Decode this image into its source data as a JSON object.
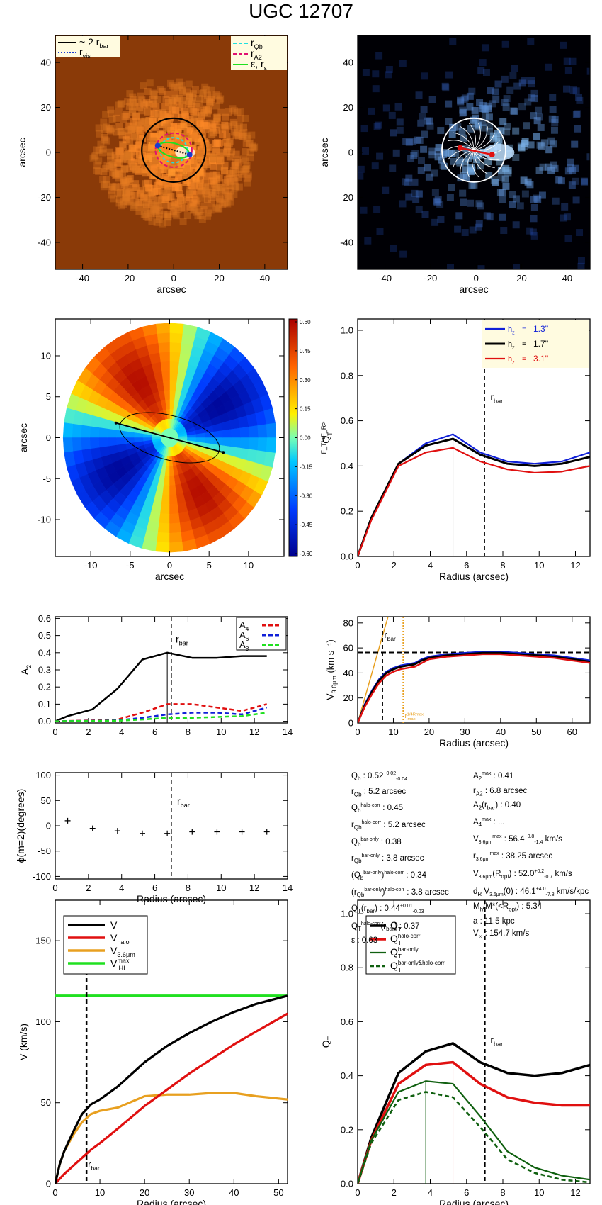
{
  "title": "UGC 12707",
  "colors": {
    "black": "#000000",
    "blue": "#1020d8",
    "red": "#e01010",
    "orange": "#e8a020",
    "green": "#20e020",
    "dkgreen": "#106010",
    "cyan": "#20e0e0",
    "magenta": "#e01070"
  },
  "chart_data": [
    {
      "id": "p1",
      "type": "image",
      "xlabel": "arcsec",
      "ylabel": "arcsec",
      "xlim": [
        -52,
        50
      ],
      "ylim": [
        -52,
        52
      ],
      "xticks": [
        -40,
        -20,
        0,
        20,
        40
      ],
      "yticks": [
        -40,
        -20,
        0,
        20,
        40
      ],
      "legend_left": [
        "~ 2 r",
        "r"
      ],
      "legend_left_sub": [
        "bar",
        "vis"
      ],
      "legend_right": [
        "r",
        "r",
        "ε, r"
      ],
      "legend_right_sub": [
        "Qb",
        "A2",
        "ε"
      ],
      "colormap": "orange"
    },
    {
      "id": "p2",
      "type": "image",
      "xlabel": "arcsec",
      "ylabel": "arcsec",
      "xlim": [
        -52,
        50
      ],
      "ylim": [
        -52,
        52
      ],
      "xticks": [
        -40,
        -20,
        0,
        20,
        40
      ],
      "yticks": [
        -40,
        -20,
        0,
        20,
        40
      ],
      "colormap": "blue"
    },
    {
      "id": "p3",
      "type": "heatmap",
      "xlabel": "arcsec",
      "ylabel": "arcsec",
      "xlim": [
        -14.5,
        14.5
      ],
      "ylim": [
        -14.5,
        14.5
      ],
      "xticks": [
        -10,
        -5,
        0,
        5,
        10
      ],
      "yticks": [
        -10,
        -5,
        0,
        5,
        10
      ],
      "colorbar_ticks": [
        "0.60",
        "0.45",
        "0.30",
        "0.15",
        "0.00",
        "-0.15",
        "-0.30",
        "-0.45",
        "-0.60"
      ],
      "colorbar_label": "F_T/<F_R>"
    },
    {
      "id": "p4",
      "type": "line",
      "xlabel": "Radius (arcsec)",
      "ylabel": "Q",
      "ylabel_sub": "T",
      "xlim": [
        0,
        12.8
      ],
      "ylim": [
        0,
        1.05
      ],
      "xticks": [
        0,
        2,
        4,
        6,
        8,
        10,
        12
      ],
      "yticks": [
        0.0,
        0.2,
        0.4,
        0.6,
        0.8,
        1.0
      ],
      "x": [
        0,
        0.75,
        2.25,
        3.75,
        5.25,
        6.75,
        8.25,
        9.75,
        11.25,
        12.8
      ],
      "series": [
        {
          "name": "1.3''",
          "color": "blue",
          "values": [
            0,
            0.17,
            0.41,
            0.5,
            0.54,
            0.46,
            0.42,
            0.41,
            0.42,
            0.46
          ]
        },
        {
          "name": "1.7''",
          "color": "black",
          "values": [
            0,
            0.17,
            0.41,
            0.49,
            0.52,
            0.45,
            0.41,
            0.4,
            0.41,
            0.44
          ]
        },
        {
          "name": "3.1''",
          "color": "red",
          "values": [
            0,
            0.16,
            0.4,
            0.46,
            0.48,
            0.42,
            0.385,
            0.37,
            0.375,
            0.4
          ]
        }
      ],
      "legend_prefix": "h",
      "legend_prefix_sub": "z",
      "vline_solid": 5.25,
      "vline_dashed": 7.0,
      "rbar_label": "r",
      "rbar_sub": "bar"
    },
    {
      "id": "p5",
      "type": "line",
      "xlabel": "",
      "ylabel": "A",
      "ylabel_sub": "2",
      "xlim": [
        0,
        14
      ],
      "ylim": [
        -0.01,
        0.61
      ],
      "xticks": [
        0,
        2,
        4,
        6,
        8,
        10,
        12,
        14
      ],
      "yticks": [
        0.0,
        0.1,
        0.2,
        0.3,
        0.4,
        0.5,
        0.6
      ],
      "series": [
        {
          "name": "A2",
          "color": "black",
          "x": [
            0,
            0.75,
            2.25,
            3.75,
            5.25,
            6.75,
            8.25,
            9.75,
            11.25,
            12.75
          ],
          "values": [
            0.0,
            0.03,
            0.07,
            0.19,
            0.36,
            0.4,
            0.37,
            0.37,
            0.38,
            0.38
          ]
        },
        {
          "name": "A",
          "sub": "4",
          "color": "red",
          "dashed": true,
          "x": [
            0,
            2.25,
            3.75,
            5.25,
            6.75,
            8.25,
            9.75,
            11.25,
            12.75
          ],
          "values": [
            0,
            0.005,
            0.01,
            0.05,
            0.1,
            0.1,
            0.08,
            0.06,
            0.1
          ]
        },
        {
          "name": "A",
          "sub": "6",
          "color": "blue",
          "dashed": true,
          "x": [
            0,
            2.25,
            3.75,
            5.25,
            6.75,
            8.25,
            9.75,
            11.25,
            12.75
          ],
          "values": [
            0,
            0.003,
            0.005,
            0.02,
            0.04,
            0.05,
            0.05,
            0.04,
            0.08
          ]
        },
        {
          "name": "A",
          "sub": "8",
          "color": "green",
          "dashed": true,
          "x": [
            0,
            2.25,
            3.75,
            5.25,
            6.75,
            8.25,
            9.75,
            11.25,
            12.75
          ],
          "values": [
            0,
            0.002,
            0.003,
            0.01,
            0.02,
            0.02,
            0.025,
            0.03,
            0.05
          ]
        }
      ],
      "vline_solid": 6.75,
      "vline_dashed": 7.0,
      "rbar_label": "r",
      "rbar_sub": "bar"
    },
    {
      "id": "p6",
      "type": "line",
      "xlabel": "Radius (arcsec)",
      "ylabel": "V",
      "ylabel_sub": "3.6μm",
      "ylabel_suffix": " (km s⁻¹)",
      "xlim": [
        0,
        65
      ],
      "ylim": [
        0,
        85
      ],
      "xticks": [
        0,
        10,
        20,
        30,
        40,
        50,
        60
      ],
      "yticks": [
        0,
        20,
        40,
        60,
        80
      ],
      "x": [
        0,
        2,
        4,
        6,
        8,
        10,
        12,
        14,
        16,
        18,
        20,
        25,
        30,
        35,
        40,
        45,
        50,
        55,
        60,
        65
      ],
      "series": [
        {
          "name": "V upper",
          "color": "blue",
          "values": [
            0,
            15,
            26,
            35,
            41,
            44,
            46,
            47,
            48,
            51,
            53,
            55,
            56,
            57,
            57,
            56,
            55,
            54,
            52,
            50
          ]
        },
        {
          "name": "V",
          "color": "black",
          "values": [
            0,
            14,
            25,
            34,
            40,
            43,
            45,
            46,
            47,
            50,
            52,
            54,
            55,
            56,
            56,
            55,
            54,
            53,
            51,
            49
          ]
        },
        {
          "name": "V lower",
          "color": "red",
          "values": [
            0,
            13,
            23,
            32,
            38,
            41,
            43,
            44,
            45,
            48,
            51,
            53,
            54,
            55,
            55,
            54,
            53,
            52,
            50,
            48
          ]
        }
      ],
      "orange_line": {
        "x": [
          0,
          8.5
        ],
        "y": [
          0,
          85
        ]
      },
      "hline": 56.4,
      "vline_dashed": 7.0,
      "vline_dotted": 12.8,
      "rbar_label": "r",
      "rbar_sub": "bar",
      "r14_label": "r",
      "r14_sub": "max",
      "r14_sup": "1/4Rmax"
    },
    {
      "id": "p7",
      "type": "scatter",
      "xlabel": "Radius (arcsec)",
      "ylabel": "ϕ(m=2)(degrees)",
      "xlim": [
        0,
        14
      ],
      "ylim": [
        -105,
        105
      ],
      "xticks": [
        0,
        2,
        4,
        6,
        8,
        10,
        12,
        14
      ],
      "yticks": [
        -100,
        -50,
        0,
        50,
        100
      ],
      "x": [
        0.75,
        2.25,
        3.75,
        5.25,
        6.75,
        8.25,
        9.75,
        11.25,
        12.75
      ],
      "y": [
        10,
        -5,
        -10,
        -15,
        -15,
        -12,
        -12,
        -12,
        -12
      ],
      "vline_dashed": 7.0,
      "rbar_label": "r",
      "rbar_sub": "bar"
    },
    {
      "id": "p8",
      "type": "line",
      "xlabel": "Radius (arcsec)",
      "ylabel": "V (km/s)",
      "xlim": [
        0,
        52
      ],
      "ylim": [
        0,
        175
      ],
      "xticks": [
        0,
        10,
        20,
        30,
        40,
        50
      ],
      "yticks": [
        0,
        50,
        100,
        150
      ],
      "x": [
        0,
        1,
        2,
        4,
        6,
        8,
        10,
        14,
        20,
        25,
        30,
        35,
        40,
        45,
        52
      ],
      "series": [
        {
          "name": "V",
          "color": "black",
          "values": [
            0,
            12,
            20,
            32,
            43,
            49,
            52,
            60,
            75,
            85,
            93,
            100,
            106,
            111,
            116
          ]
        },
        {
          "name": "V",
          "sub": "halo",
          "color": "red",
          "values": [
            0,
            3,
            6,
            11,
            16,
            21,
            25,
            34,
            48,
            58,
            68,
            77,
            86,
            94,
            105
          ]
        },
        {
          "name": "V",
          "sub": "3.6μm",
          "color": "orange",
          "values": [
            0,
            12,
            20,
            30,
            38,
            43,
            45,
            47,
            54,
            55,
            55,
            56,
            56,
            54,
            52
          ]
        }
      ],
      "hline": {
        "name": "V",
        "sub": "HI",
        "sup": "max",
        "color": "green",
        "value": 116
      },
      "vline_dashed": 7.0,
      "rbar_label": "r",
      "rbar_sub": "bar"
    },
    {
      "id": "p9",
      "type": "line",
      "xlabel": "Radius (arcsec)",
      "ylabel": "Q",
      "ylabel_sub": "T",
      "xlim": [
        0,
        12.8
      ],
      "ylim": [
        0,
        1.05
      ],
      "xticks": [
        0,
        2,
        4,
        6,
        8,
        10,
        12
      ],
      "yticks": [
        0.0,
        0.2,
        0.4,
        0.6,
        0.8,
        1.0
      ],
      "x": [
        0,
        0.75,
        2.25,
        3.75,
        5.25,
        6.75,
        8.25,
        9.75,
        11.25,
        12.8
      ],
      "series": [
        {
          "name": "Q",
          "sub": "T",
          "color": "black",
          "values": [
            0,
            0.17,
            0.41,
            0.49,
            0.52,
            0.45,
            0.41,
            0.4,
            0.41,
            0.44
          ]
        },
        {
          "name": "Q",
          "sub": "T",
          "sup": "halo-corr",
          "color": "red",
          "values": [
            0,
            0.16,
            0.37,
            0.44,
            0.45,
            0.37,
            0.32,
            0.3,
            0.29,
            0.29
          ]
        },
        {
          "name": "Q",
          "sub": "T",
          "sup": "bar-only",
          "color": "dkgreen",
          "values": [
            0,
            0.16,
            0.34,
            0.38,
            0.37,
            0.25,
            0.12,
            0.06,
            0.03,
            0.015
          ]
        },
        {
          "name": "Q",
          "sub": "T",
          "sup": "bar-only&halo-corr",
          "color": "dkgreen",
          "dashed": true,
          "values": [
            0,
            0.15,
            0.31,
            0.34,
            0.32,
            0.21,
            0.09,
            0.04,
            0.015,
            0.005
          ]
        }
      ],
      "vline_green": 3.75,
      "vline_red": 5.25,
      "vline_dashed": 7.0,
      "rbar_label": "r",
      "rbar_sub": "bar"
    }
  ],
  "params_left": [
    "Q_b :  0.52^{+0.02}_{-0.04}",
    "r_Qb :  5.2  arcsec",
    "Q_b^{halo-corr} :  0.45",
    "r_Qb^{halo-corr} :  5.2 arcsec",
    "Q_b^{bar-only} :  0.38",
    "r_Qb^{bar-only} :  3.8 arcsec",
    "(Q_b^{bar-only})^{halo-corr} :  0.34",
    "(r_Qb^{bar-only})^{halo-corr} :  3.8 arcsec",
    "Q_T(r_bar) :  0.44^{+0.01}_{-0.03}",
    "Q_T^{halo-corr}(r_bar) :  0.37",
    "ε :  0.63"
  ],
  "params_right": [
    "A_2^{max} :  0.41",
    "r_A2 :  6.8 arcsec",
    "A_2(r_bar) :  0.40",
    "A_4^{max} :  ...",
    "V_{3.6μm}^{max} :  56.4^{+0.8}_{-1.4} km/s",
    "r_{3.6μm}^{max} :  38.25 arcsec",
    "V_{3.6μm}(R_opt) :  52.0^{+0.2}_{-0.7} km/s",
    "d_R V_{3.6μm}(0) :  46.1^{+4.0}_{-7.8} km/s/kpc",
    "M_h/M_*(<R_opt) :  5.34",
    "a :  11.5 kpc",
    "V_∞ :  154.7 km/s"
  ]
}
